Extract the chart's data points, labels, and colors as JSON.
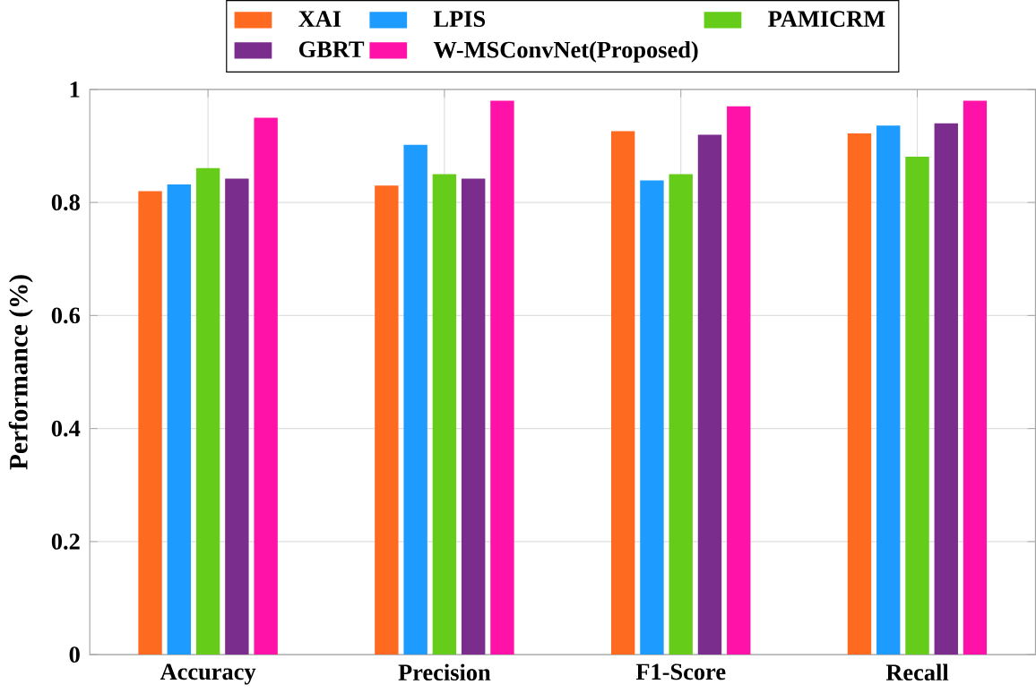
{
  "chart_data": {
    "type": "bar",
    "ylabel": "Performance (%)",
    "categories": [
      "Accuracy",
      "Precision",
      "F1-Score",
      "Recall"
    ],
    "series": [
      {
        "name": "XAI",
        "color": "#ff6a21",
        "values": [
          0.82,
          0.83,
          0.926,
          0.922
        ]
      },
      {
        "name": "LPIS",
        "color": "#1e9bff",
        "values": [
          0.832,
          0.902,
          0.839,
          0.936
        ]
      },
      {
        "name": "PAMICRM",
        "color": "#66cc1a",
        "values": [
          0.861,
          0.85,
          0.85,
          0.881
        ]
      },
      {
        "name": "GBRT",
        "color": "#7b2d8e",
        "values": [
          0.842,
          0.842,
          0.92,
          0.94
        ]
      },
      {
        "name": "W-MSConvNet(Proposed)",
        "color": "#ff12a8",
        "values": [
          0.95,
          0.98,
          0.97,
          0.98
        ]
      }
    ],
    "ylim": [
      0,
      1
    ],
    "yticks": [
      0,
      0.2,
      0.4,
      0.6,
      0.8,
      1
    ],
    "grid": true,
    "legend": "top"
  }
}
